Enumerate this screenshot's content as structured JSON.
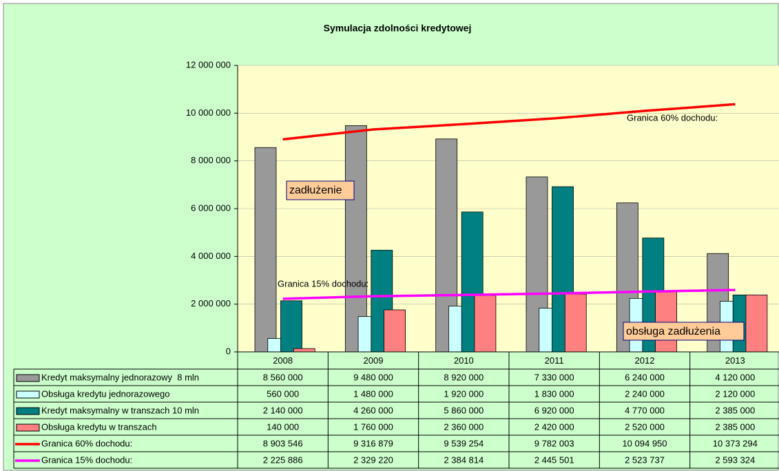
{
  "chart_data": {
    "type": "bar",
    "title": "Symulacja zdolności kredytowej",
    "categories": [
      "2008",
      "2009",
      "2010",
      "2011",
      "2012",
      "2013"
    ],
    "series": [
      {
        "name": "Kredyt maksymalny jednorazowy  8 mln",
        "color": "#999999",
        "type": "bar",
        "values": [
          8560000,
          9480000,
          8920000,
          7330000,
          6240000,
          4120000
        ],
        "value_labels": [
          "8 560 000",
          "9 480 000",
          "8 920 000",
          "7 330 000",
          "6 240 000",
          "4 120 000"
        ]
      },
      {
        "name": "Obsługa kredytu jednorazowego",
        "color": "#ccffff",
        "type": "bar",
        "values": [
          560000,
          1480000,
          1920000,
          1830000,
          2240000,
          2120000
        ],
        "value_labels": [
          "560 000",
          "1 480 000",
          "1 920 000",
          "1 830 000",
          "2 240 000",
          "2 120 000"
        ]
      },
      {
        "name": "Kredyt maksymalny w transzach 10 mln",
        "color": "#008080",
        "type": "bar",
        "values": [
          2140000,
          4260000,
          5860000,
          6920000,
          4770000,
          2385000
        ],
        "value_labels": [
          "2 140 000",
          "4 260 000",
          "5 860 000",
          "6 920 000",
          "4 770 000",
          "2 385 000"
        ]
      },
      {
        "name": "Obsługa kredytu w transzach",
        "color": "#ff8080",
        "type": "bar",
        "values": [
          140000,
          1760000,
          2360000,
          2420000,
          2520000,
          2385000
        ],
        "value_labels": [
          "140 000",
          "1 760 000",
          "2 360 000",
          "2 420 000",
          "2 520 000",
          "2 385 000"
        ]
      },
      {
        "name": "Granica 60% dochodu:",
        "color": "#ff0000",
        "type": "line",
        "values": [
          8903546,
          9316879,
          9539254,
          9782003,
          10094950,
          10373294
        ],
        "value_labels": [
          "8 903 546",
          "9 316 879",
          "9 539 254",
          "9 782 003",
          "10 094 950",
          "10 373 294"
        ]
      },
      {
        "name": "Granica 15% dochodu:",
        "color": "#ff00ff",
        "type": "line",
        "values": [
          2225886,
          2329220,
          2384814,
          2445501,
          2523737,
          2593324
        ],
        "value_labels": [
          "2 225 886",
          "2 329 220",
          "2 384 814",
          "2 445 501",
          "2 523 737",
          "2 593 324"
        ]
      }
    ],
    "annotations": [
      "zadłużenie",
      "obsługa zadłużenia"
    ],
    "ylim": [
      0,
      12000000
    ],
    "yticks": [
      0,
      {
        "value": 2000000,
        "label": "2 000 000"
      },
      {
        "value": 4000000,
        "label": "4 000 000"
      },
      {
        "value": 6000000,
        "label": "6 000 000"
      },
      {
        "value": 8000000,
        "label": "8 000 000"
      },
      {
        "value": 10000000,
        "label": "10 000 000"
      },
      {
        "value": 12000000,
        "label": "12 000 000"
      }
    ],
    "grid": true
  }
}
